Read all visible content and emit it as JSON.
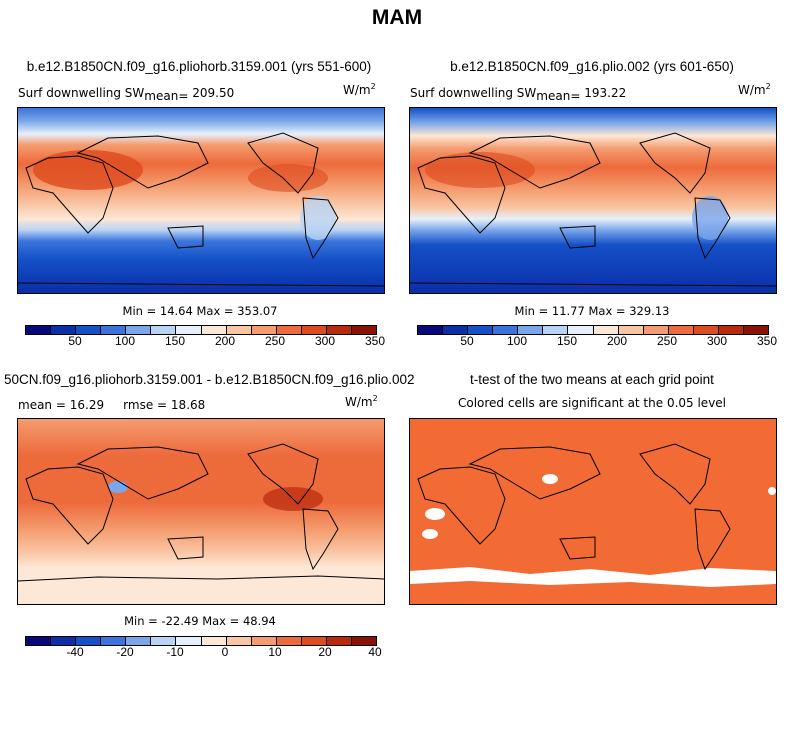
{
  "title": "MAM",
  "colors": {
    "abs_scale": [
      "#08087a",
      "#0a2fa8",
      "#1450c8",
      "#3a74dc",
      "#7aa6ea",
      "#b9d3f4",
      "#e6f0fb",
      "#fde7d6",
      "#f9c6a4",
      "#f49c6f",
      "#ed6a3b",
      "#dd4b1e",
      "#b92a0d",
      "#8a1204"
    ],
    "diff_scale": [
      "#08087a",
      "#0a2fa8",
      "#1450c8",
      "#3a74dc",
      "#7aa6ea",
      "#b9d3f4",
      "#e6f0fb",
      "#fde7d6",
      "#f9c6a4",
      "#f49c6f",
      "#ed6a3b",
      "#dd4b1e",
      "#b92a0d",
      "#8a1204"
    ],
    "significant": "#f26b34"
  },
  "chart_data": [
    {
      "type": "heatmap",
      "title": "b.e12.B1850CN.f09_g16.pliohorb.3159.001 (yrs 551-600)",
      "variable": "Surf downwelling SW",
      "mean_label": "mean=",
      "mean": "209.50",
      "units": "W/m",
      "units_exp": "2",
      "min_label": "Min =",
      "min": "14.64",
      "max_label": "Max =",
      "max": "353.07",
      "colorbar_ticks": [
        "50",
        "100",
        "150",
        "200",
        "250",
        "300",
        "350"
      ]
    },
    {
      "type": "heatmap",
      "title": "b.e12.B1850CN.f09_g16.plio.002 (yrs 601-650)",
      "variable": "Surf downwelling SW",
      "mean_label": "mean=",
      "mean": "193.22",
      "units": "W/m",
      "units_exp": "2",
      "min_label": "Min =",
      "min": "11.77",
      "max_label": "Max =",
      "max": "329.13",
      "colorbar_ticks": [
        "50",
        "100",
        "150",
        "200",
        "250",
        "300",
        "350"
      ]
    },
    {
      "type": "heatmap",
      "title": "50CN.f09_g16.pliohorb.3159.001 - b.e12.B1850CN.f09_g16.plio.002",
      "mean_label": "mean =",
      "mean": "16.29",
      "rmse_label": "rmse =",
      "rmse": "18.68",
      "units": "W/m",
      "units_exp": "2",
      "min_label": "Min =",
      "min": "-22.49",
      "max_label": "Max =",
      "max": "48.94",
      "colorbar_ticks": [
        "-40",
        "-20",
        "-10",
        "0",
        "10",
        "20",
        "40"
      ]
    },
    {
      "type": "heatmap",
      "title": "t-test of the two means at each grid point",
      "subtitle": "Colored cells are significant at the 0.05 level"
    }
  ]
}
